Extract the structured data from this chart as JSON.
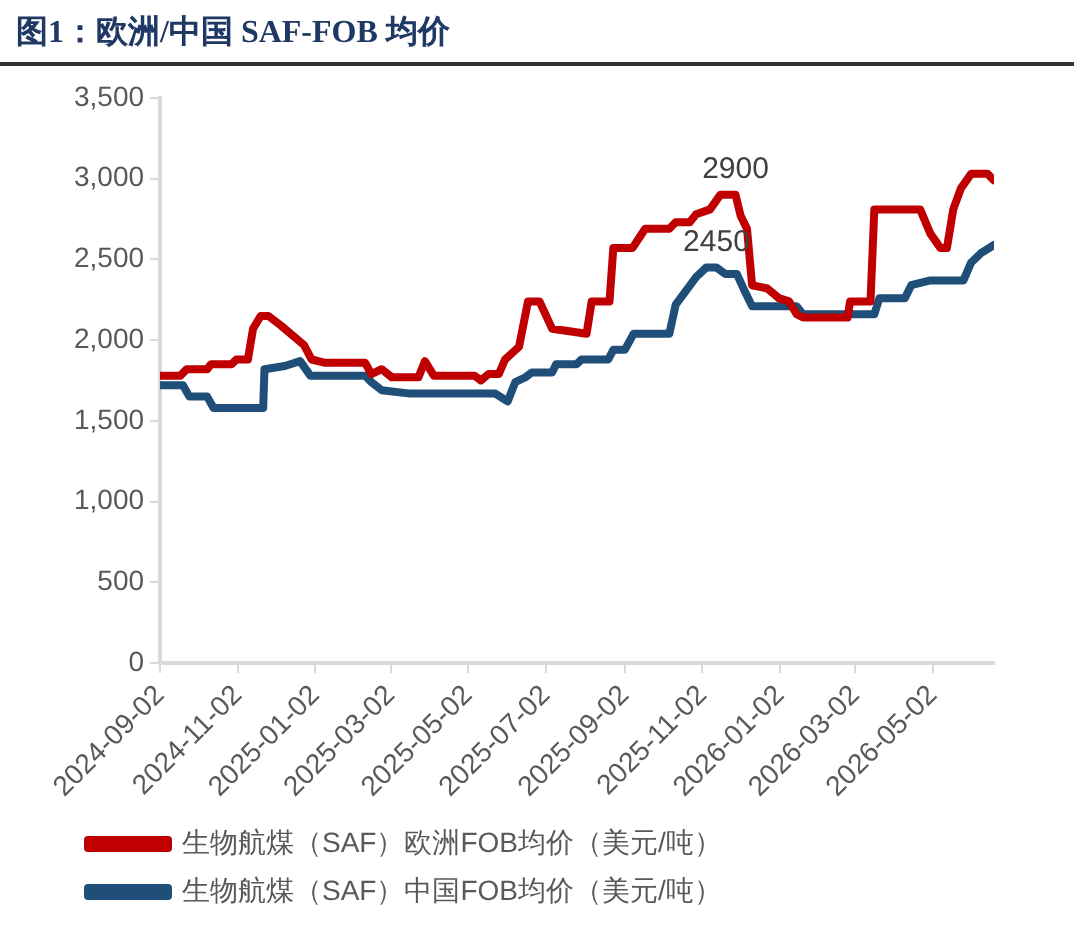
{
  "chart_data": {
    "type": "line",
    "title": "图1：欧洲/中国 SAF-FOB 均价",
    "xlim": [
      "2024-09-02",
      "2026-06-19"
    ],
    "xticks": [
      "2024-09-02",
      "2024-11-02",
      "2025-01-02",
      "2025-03-02",
      "2025-05-02",
      "2025-07-02",
      "2025-09-02",
      "2025-11-02",
      "2026-01-02",
      "2026-03-02",
      "2026-05-02"
    ],
    "ylim": [
      0,
      3500
    ],
    "yticks": [
      0,
      500,
      {
        "value": 1000,
        "label": "1,000"
      },
      {
        "value": 1500,
        "label": "1,500"
      },
      {
        "value": 2000,
        "label": "2,000"
      },
      {
        "value": 2500,
        "label": "2,500"
      },
      {
        "value": 3000,
        "label": "3,000"
      },
      {
        "value": 3500,
        "label": "3,500"
      }
    ],
    "grid": false,
    "legend": "bottom",
    "marker": "none",
    "line_style": "solid",
    "annotations": [
      {
        "text": "2900",
        "x": "2025-11-28",
        "y": 2900
      },
      {
        "text": "2450",
        "x": "2025-11-13",
        "y": 2450
      }
    ],
    "series": [
      {
        "name": "生物航煤（SAF）欧洲FOB均价（美元/吨）",
        "color": "#c00000",
        "x": [
          "2024-09-02",
          "2024-09-18",
          "2024-09-23",
          "2024-10-09",
          "2024-10-12",
          "2024-10-28",
          "2024-11-01",
          "2024-11-10",
          "2024-11-14",
          "2024-11-20",
          "2024-11-26",
          "2024-12-06",
          "2024-12-24",
          "2024-12-30",
          "2025-01-09",
          "2025-02-10",
          "2025-02-15",
          "2025-02-23",
          "2025-03-03",
          "2025-03-24",
          "2025-03-29",
          "2025-04-05",
          "2025-05-07",
          "2025-05-12",
          "2025-05-18",
          "2025-05-26",
          "2025-05-31",
          "2025-06-11",
          "2025-06-18",
          "2025-06-27",
          "2025-07-07",
          "2025-08-03",
          "2025-08-07",
          "2025-08-21",
          "2025-08-24",
          "2025-09-08",
          "2025-09-13",
          "2025-09-18",
          "2025-10-07",
          "2025-10-12",
          "2025-10-23",
          "2025-10-28",
          "2025-11-08",
          "2025-11-16",
          "2025-11-28",
          "2025-12-02",
          "2025-12-07",
          "2025-12-11",
          "2025-12-23",
          "2026-01-01",
          "2026-01-09",
          "2026-01-15",
          "2026-01-20",
          "2026-02-24",
          "2026-02-26",
          "2026-03-14",
          "2026-03-17",
          "2026-04-22",
          "2026-04-30",
          "2026-05-08",
          "2026-05-13",
          "2026-05-18",
          "2026-05-24",
          "2026-06-01",
          "2026-06-14",
          "2026-06-19"
        ],
        "values": [
          1780,
          1780,
          1820,
          1820,
          1850,
          1850,
          1880,
          1880,
          2070,
          2150,
          2150,
          2090,
          1970,
          1880,
          1860,
          1860,
          1790,
          1820,
          1770,
          1770,
          1870,
          1780,
          1780,
          1750,
          1790,
          1790,
          1880,
          1960,
          2240,
          2240,
          2070,
          2040,
          2240,
          2240,
          2570,
          2570,
          2630,
          2690,
          2690,
          2730,
          2730,
          2780,
          2810,
          2900,
          2900,
          2770,
          2690,
          2340,
          2320,
          2260,
          2240,
          2160,
          2140,
          2140,
          2240,
          2240,
          2810,
          2810,
          2660,
          2570,
          2570,
          2810,
          2940,
          3030,
          3030,
          2990
        ]
      },
      {
        "name": "生物航煤（SAF）中国FOB均价（美元/吨）",
        "color": "#1f4e79",
        "x": [
          "2024-09-02",
          "2024-09-20",
          "2024-09-25",
          "2024-10-09",
          "2024-10-14",
          "2024-11-22",
          "2024-11-23",
          "2024-12-09",
          "2024-12-21",
          "2024-12-29",
          "2025-02-10",
          "2025-02-15",
          "2025-02-23",
          "2025-03-16",
          "2025-05-23",
          "2025-06-02",
          "2025-06-08",
          "2025-06-16",
          "2025-06-21",
          "2025-07-07",
          "2025-07-10",
          "2025-07-26",
          "2025-07-30",
          "2025-08-20",
          "2025-08-24",
          "2025-09-02",
          "2025-09-09",
          "2025-10-07",
          "2025-10-12",
          "2025-10-28",
          "2025-11-05",
          "2025-11-13",
          "2025-11-20",
          "2025-11-29",
          "2025-12-06",
          "2025-12-11",
          "2026-01-15",
          "2026-01-20",
          "2026-03-17",
          "2026-03-21",
          "2026-04-10",
          "2026-04-15",
          "2026-04-30",
          "2026-05-26",
          "2026-06-01",
          "2026-06-09",
          "2026-06-19"
        ],
        "values": [
          1720,
          1720,
          1650,
          1650,
          1580,
          1580,
          1820,
          1840,
          1870,
          1780,
          1780,
          1740,
          1690,
          1670,
          1670,
          1620,
          1740,
          1770,
          1800,
          1800,
          1850,
          1850,
          1880,
          1880,
          1940,
          1940,
          2040,
          2040,
          2220,
          2390,
          2450,
          2450,
          2410,
          2410,
          2290,
          2210,
          2210,
          2160,
          2160,
          2260,
          2260,
          2340,
          2370,
          2370,
          2480,
          2540,
          2590
        ]
      }
    ]
  }
}
